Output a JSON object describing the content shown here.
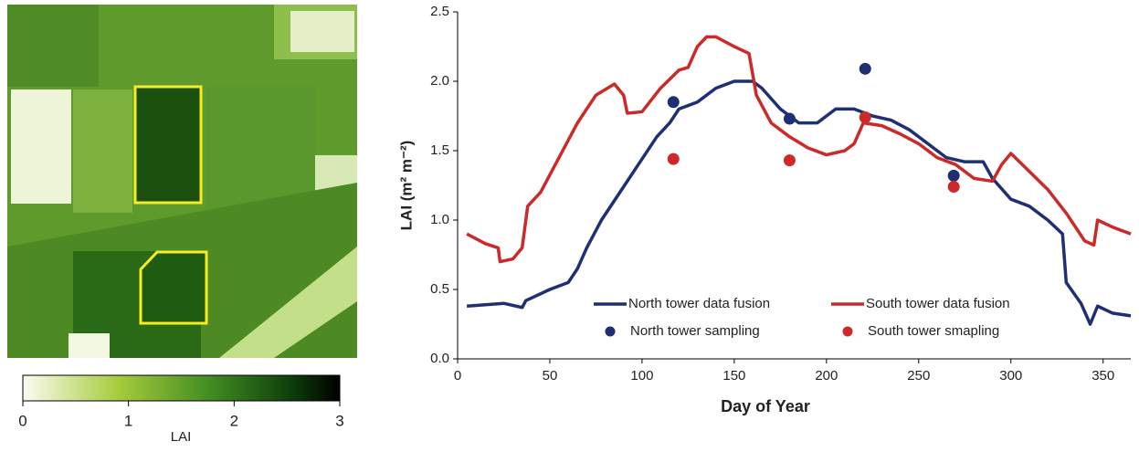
{
  "colorbar": {
    "label": "LAI",
    "lim": [
      0,
      3
    ],
    "ticks": [
      0,
      1,
      2,
      3
    ]
  },
  "chart_data": {
    "type": "line",
    "xlabel": "Day of Year",
    "ylabel": "LAI (m² m⁻²)",
    "xlim": [
      0,
      365
    ],
    "xticks": [
      0,
      50,
      100,
      150,
      200,
      250,
      300,
      350
    ],
    "ylim": [
      0,
      2.5
    ],
    "yticks": [
      {
        "value": 0,
        "label": "0.0"
      },
      0.5,
      {
        "value": 1,
        "label": "1.0"
      },
      1.5,
      {
        "value": 2,
        "label": "2.0"
      },
      2.5
    ],
    "series": [
      {
        "name": "North tower data fusion",
        "type": "line",
        "color": "#1f2f73",
        "x": [
          5,
          25,
          35,
          37,
          50,
          60,
          65,
          70,
          78,
          88,
          98,
          108,
          115,
          120,
          130,
          140,
          150,
          160,
          165,
          175,
          185,
          195,
          205,
          215,
          225,
          235,
          245,
          255,
          265,
          275,
          285,
          290,
          300,
          310,
          320,
          328,
          330,
          338,
          343,
          347,
          355,
          365
        ],
        "y": [
          0.38,
          0.4,
          0.37,
          0.42,
          0.5,
          0.55,
          0.65,
          0.8,
          1.0,
          1.2,
          1.4,
          1.6,
          1.7,
          1.8,
          1.85,
          1.95,
          2.0,
          2.0,
          1.95,
          1.8,
          1.7,
          1.7,
          1.8,
          1.8,
          1.75,
          1.72,
          1.65,
          1.55,
          1.45,
          1.42,
          1.42,
          1.3,
          1.15,
          1.1,
          1.0,
          0.9,
          0.55,
          0.4,
          0.25,
          0.38,
          0.33,
          0.31
        ]
      },
      {
        "name": "South tower data fusion",
        "type": "line",
        "color": "#cc2a2a",
        "x": [
          5,
          15,
          22,
          23,
          30,
          35,
          38,
          45,
          55,
          65,
          75,
          85,
          90,
          92,
          100,
          110,
          120,
          125,
          130,
          135,
          140,
          150,
          158,
          162,
          170,
          180,
          190,
          200,
          210,
          215,
          220,
          230,
          240,
          250,
          260,
          270,
          280,
          290,
          295,
          300,
          310,
          320,
          330,
          340,
          345,
          347,
          355,
          365
        ],
        "y": [
          0.9,
          0.83,
          0.8,
          0.7,
          0.72,
          0.8,
          1.1,
          1.2,
          1.45,
          1.7,
          1.9,
          1.98,
          1.9,
          1.77,
          1.78,
          1.95,
          2.08,
          2.1,
          2.25,
          2.32,
          2.32,
          2.25,
          2.2,
          1.9,
          1.7,
          1.6,
          1.52,
          1.47,
          1.5,
          1.55,
          1.7,
          1.68,
          1.62,
          1.55,
          1.45,
          1.4,
          1.3,
          1.28,
          1.4,
          1.48,
          1.35,
          1.22,
          1.05,
          0.85,
          0.82,
          1.0,
          0.95,
          0.9
        ]
      },
      {
        "name": "North tower sampling",
        "type": "scatter",
        "color": "#1f2f73",
        "x": [
          117,
          180,
          221,
          269
        ],
        "y": [
          1.85,
          1.73,
          2.09,
          1.32
        ]
      },
      {
        "name": "South tower smapling",
        "type": "scatter",
        "color": "#cc2a2a",
        "x": [
          117,
          180,
          221,
          269
        ],
        "y": [
          1.44,
          1.43,
          1.74,
          1.24
        ]
      }
    ]
  }
}
